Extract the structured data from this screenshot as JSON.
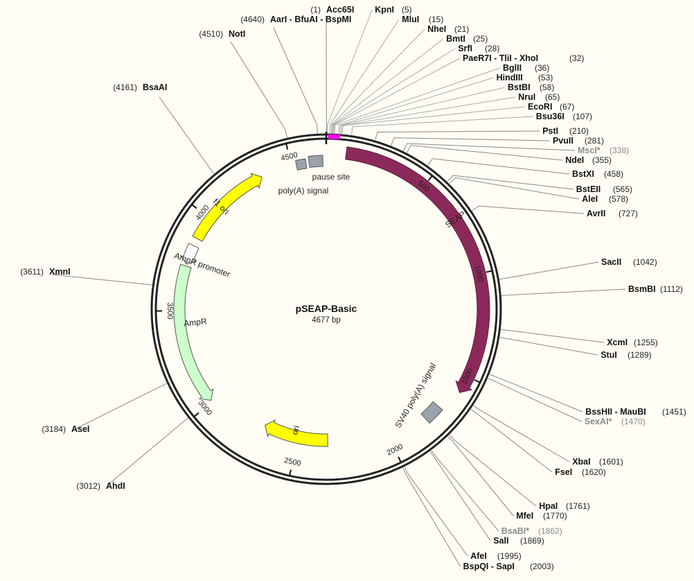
{
  "plasmid": {
    "name": "pSEAP-Basic",
    "length_label": "4677 bp",
    "length": 4677
  },
  "colors": {
    "background": "#fffdf4",
    "seap": "#8b2a5a",
    "ori": "#ffff00",
    "f1_ori": "#ffff00",
    "ampr": "#ccffcc",
    "ampr_promoter": "#ffffff",
    "signal": "#9aa3ad",
    "mcs": "#ff00ff",
    "leader": "#888888"
  },
  "ticks": [
    {
      "label": "500",
      "pos": 500
    },
    {
      "label": "1000",
      "pos": 1000
    },
    {
      "label": "1500",
      "pos": 1500
    },
    {
      "label": "2000",
      "pos": 2000
    },
    {
      "label": "2500",
      "pos": 2500
    },
    {
      "label": "3000",
      "pos": 3000
    },
    {
      "label": "3500",
      "pos": 3500
    },
    {
      "label": "4000",
      "pos": 4000
    },
    {
      "label": "4500",
      "pos": 4500
    }
  ],
  "features": [
    {
      "name": "SEAP",
      "label": "SEAP",
      "start": 95,
      "end": 1585,
      "direction": "cw",
      "type": "seap"
    },
    {
      "name": "SV40 poly(A) signal",
      "label": "SV40 poly(A) signal",
      "start": 1700,
      "end": 1790,
      "direction": "none",
      "type": "signal"
    },
    {
      "name": "ori",
      "label": "ori",
      "start": 2330,
      "end": 2700,
      "direction": "cw",
      "type": "ori"
    },
    {
      "name": "AmpR",
      "label": "AmpR",
      "start": 3010,
      "end": 3730,
      "direction": "ccw",
      "type": "ampr"
    },
    {
      "name": "AmpR promoter",
      "label": "AmpR promoter",
      "start": 3740,
      "end": 3840,
      "direction": "ccw",
      "type": "ampr_promoter"
    },
    {
      "name": "f1 ori",
      "label": "f1 ori",
      "start": 3880,
      "end": 4340,
      "direction": "cw",
      "type": "f1_ori"
    },
    {
      "name": "poly(A) signal",
      "label": "poly(A) signal",
      "start": 4525,
      "end": 4575,
      "direction": "none",
      "type": "signal"
    },
    {
      "name": "pause site",
      "label": "pause site",
      "start": 4590,
      "end": 4660,
      "direction": "none",
      "type": "signal"
    }
  ],
  "sites": [
    {
      "name": "AarI - BfuAI - BspMI",
      "pos_label": "(4640)",
      "pos": 4640,
      "side": "left",
      "faded": false
    },
    {
      "name": "Acc65I",
      "pos_label": "(1)",
      "pos": 1,
      "side": "left",
      "faded": false
    },
    {
      "name": "NotI",
      "pos_label": "(4510)",
      "pos": 4510,
      "side": "left",
      "faded": false
    },
    {
      "name": "BsaAI",
      "pos_label": "(4161)",
      "pos": 4161,
      "side": "left",
      "faded": false
    },
    {
      "name": "XmnI",
      "pos_label": "(3611)",
      "pos": 3611,
      "side": "left",
      "faded": false
    },
    {
      "name": "AseI",
      "pos_label": "(3184)",
      "pos": 3184,
      "side": "left",
      "faded": false
    },
    {
      "name": "AhdI",
      "pos_label": "(3012)",
      "pos": 3012,
      "side": "left",
      "faded": false
    },
    {
      "name": "KpnI",
      "pos_label": "(5)",
      "pos": 5,
      "side": "right",
      "faded": false
    },
    {
      "name": "MluI",
      "pos_label": "(15)",
      "pos": 15,
      "side": "right",
      "faded": false
    },
    {
      "name": "NheI",
      "pos_label": "(21)",
      "pos": 21,
      "side": "right",
      "faded": false
    },
    {
      "name": "BmtI",
      "pos_label": "(25)",
      "pos": 25,
      "side": "right",
      "faded": false
    },
    {
      "name": "SrfI",
      "pos_label": "(28)",
      "pos": 28,
      "side": "right",
      "faded": false
    },
    {
      "name": "PaeR7I - TliI - XhoI",
      "pos_label": "(32)",
      "pos": 32,
      "side": "right",
      "faded": false
    },
    {
      "name": "BglII",
      "pos_label": "(36)",
      "pos": 36,
      "side": "right",
      "faded": false
    },
    {
      "name": "HindIII",
      "pos_label": "(53)",
      "pos": 53,
      "side": "right",
      "faded": false
    },
    {
      "name": "BstBI",
      "pos_label": "(58)",
      "pos": 58,
      "side": "right",
      "faded": false
    },
    {
      "name": "NruI",
      "pos_label": "(65)",
      "pos": 65,
      "side": "right",
      "faded": false
    },
    {
      "name": "EcoRI",
      "pos_label": "(67)",
      "pos": 67,
      "side": "right",
      "faded": false
    },
    {
      "name": "Bsu36I",
      "pos_label": "(107)",
      "pos": 107,
      "side": "right",
      "faded": false
    },
    {
      "name": "PstI",
      "pos_label": "(210)",
      "pos": 210,
      "side": "right",
      "faded": false
    },
    {
      "name": "PvuII",
      "pos_label": "(281)",
      "pos": 281,
      "side": "right",
      "faded": false
    },
    {
      "name": "MscI*",
      "pos_label": "(338)",
      "pos": 338,
      "side": "right",
      "faded": true
    },
    {
      "name": "NdeI",
      "pos_label": "(355)",
      "pos": 355,
      "side": "right",
      "faded": false
    },
    {
      "name": "BstXI",
      "pos_label": "(458)",
      "pos": 458,
      "side": "right",
      "faded": false
    },
    {
      "name": "BstEII",
      "pos_label": "(565)",
      "pos": 565,
      "side": "right",
      "faded": false
    },
    {
      "name": "AleI",
      "pos_label": "(578)",
      "pos": 578,
      "side": "right",
      "faded": false
    },
    {
      "name": "AvrII",
      "pos_label": "(727)",
      "pos": 727,
      "side": "right",
      "faded": false
    },
    {
      "name": "SacII",
      "pos_label": "(1042)",
      "pos": 1042,
      "side": "right",
      "faded": false
    },
    {
      "name": "BsmBI",
      "pos_label": "(1112)",
      "pos": 1112,
      "side": "right",
      "faded": false
    },
    {
      "name": "XcmI",
      "pos_label": "(1255)",
      "pos": 1255,
      "side": "right",
      "faded": false
    },
    {
      "name": "StuI",
      "pos_label": "(1289)",
      "pos": 1289,
      "side": "right",
      "faded": false
    },
    {
      "name": "BssHII - MauBI",
      "pos_label": "(1451)",
      "pos": 1451,
      "side": "right",
      "faded": false
    },
    {
      "name": "SexAI*",
      "pos_label": "(1470)",
      "pos": 1470,
      "side": "right",
      "faded": true
    },
    {
      "name": "XbaI",
      "pos_label": "(1601)",
      "pos": 1601,
      "side": "right",
      "faded": false
    },
    {
      "name": "FseI",
      "pos_label": "(1620)",
      "pos": 1620,
      "side": "right",
      "faded": false
    },
    {
      "name": "HpaI",
      "pos_label": "(1761)",
      "pos": 1761,
      "side": "right",
      "faded": false
    },
    {
      "name": "MfeI",
      "pos_label": "(1770)",
      "pos": 1770,
      "side": "right",
      "faded": false
    },
    {
      "name": "BsaBI*",
      "pos_label": "(1862)",
      "pos": 1862,
      "side": "right",
      "faded": true
    },
    {
      "name": "SalI",
      "pos_label": "(1869)",
      "pos": 1869,
      "side": "right",
      "faded": false
    },
    {
      "name": "AfeI",
      "pos_label": "(1995)",
      "pos": 1995,
      "side": "right",
      "faded": false
    },
    {
      "name": "BspQI - SapI",
      "pos_label": "(2003)",
      "pos": 2003,
      "side": "right",
      "faded": false
    }
  ]
}
